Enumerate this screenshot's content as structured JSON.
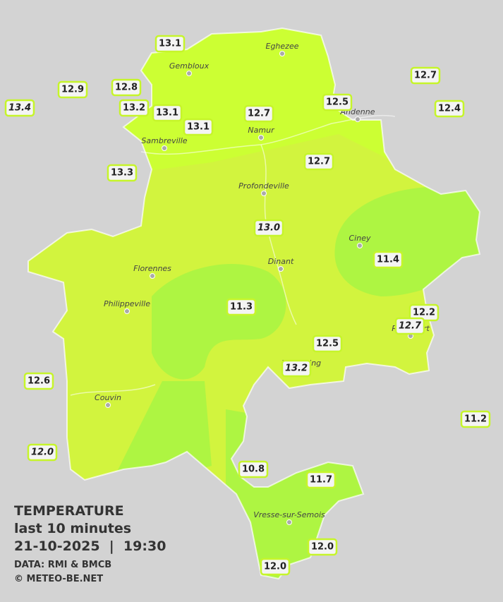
{
  "legend": {
    "title": "TEMPERATURE",
    "period": "last 10 minutes",
    "datetime": "21-10-2025  |  19:30",
    "source": "DATA: RMI & BMCB",
    "credit": "© METEO-BE.NET"
  },
  "cities": [
    "Eghezee",
    "Gembloux",
    "Andenne",
    "Namur",
    "Sambreville",
    "Profondeville",
    "Ciney",
    "Dinant",
    "Florennes",
    "Philippeville",
    "Rochefort",
    "Beauraing",
    "Couvin",
    "Vresse-sur-Semois"
  ],
  "stations": [
    {
      "label": "13.1",
      "italic": false
    },
    {
      "label": "12.9",
      "italic": false
    },
    {
      "label": "13.4",
      "italic": true
    },
    {
      "label": "12.8",
      "italic": false
    },
    {
      "label": "13.2",
      "italic": false
    },
    {
      "label": "13.1",
      "italic": false
    },
    {
      "label": "13.1",
      "italic": false
    },
    {
      "label": "12.7",
      "italic": false
    },
    {
      "label": "12.5",
      "italic": false
    },
    {
      "label": "12.7",
      "italic": false
    },
    {
      "label": "12.4",
      "italic": false
    },
    {
      "label": "12.7",
      "italic": false
    },
    {
      "label": "13.3",
      "italic": false
    },
    {
      "label": "13.0",
      "italic": true
    },
    {
      "label": "11.4",
      "italic": false
    },
    {
      "label": "11.3",
      "italic": false
    },
    {
      "label": "12.2",
      "italic": false
    },
    {
      "label": "12.7",
      "italic": true
    },
    {
      "label": "12.5",
      "italic": false
    },
    {
      "label": "13.2",
      "italic": true
    },
    {
      "label": "12.6",
      "italic": false
    },
    {
      "label": "11.2",
      "italic": false
    },
    {
      "label": "12.0",
      "italic": true
    },
    {
      "label": "10.8",
      "italic": false
    },
    {
      "label": "11.7",
      "italic": false
    },
    {
      "label": "12.0",
      "italic": false
    },
    {
      "label": "12.0",
      "italic": false
    }
  ]
}
